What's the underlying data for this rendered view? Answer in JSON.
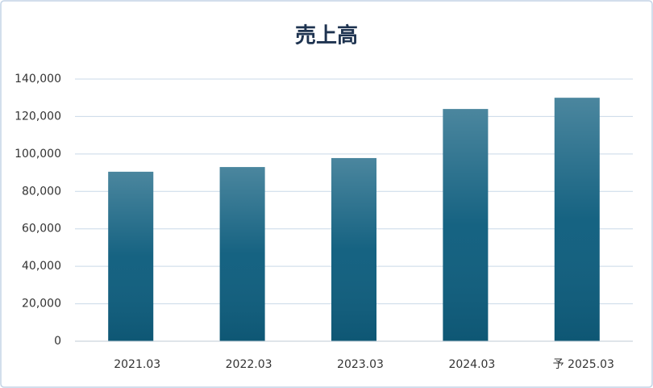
{
  "chart_data": {
    "type": "bar",
    "title": "売上高",
    "categories": [
      "2021.03",
      "2022.03",
      "2023.03",
      "2024.03",
      "予 2025.03"
    ],
    "values": [
      90500,
      93000,
      97800,
      124000,
      130000
    ],
    "color": "#0f5e7e",
    "ylim": [
      0,
      140000
    ],
    "yticks": [
      0,
      {
        "value": 20000,
        "label": "20,000"
      },
      {
        "value": 40000,
        "label": "40,000"
      },
      {
        "value": 60000,
        "label": "60,000"
      },
      {
        "value": 80000,
        "label": "80,000"
      },
      {
        "value": 100000,
        "label": "100,000"
      },
      {
        "value": 120000,
        "label": "120,000"
      },
      {
        "value": 140000,
        "label": "140,000"
      }
    ],
    "grid": true
  }
}
